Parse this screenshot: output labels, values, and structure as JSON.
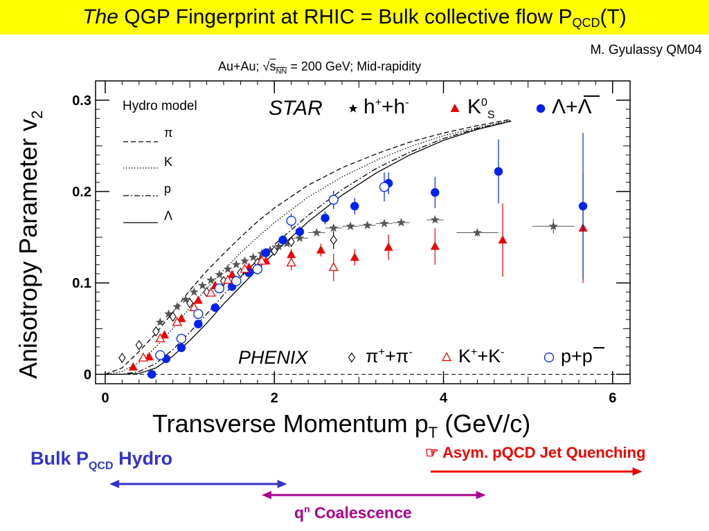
{
  "header": {
    "title_italic": "The",
    "title_main": "QGP Fingerprint at RHIC = Bulk collective flow  P",
    "title_sub": "QCD",
    "title_end": "(T)"
  },
  "author": "M. Gyulassy QM04",
  "subtitle": {
    "prefix": "Au+Au; ",
    "sqrt": "√",
    "s": "s",
    "s_sub": "NN",
    "suffix": " = 200 GeV; Mid-rapidity"
  },
  "axes": {
    "ylabel": "Anisotropy Parameter v",
    "ylabel_sub": "2",
    "xlabel": "Transverse Momentum p",
    "xlabel_sub": "T",
    "xlabel_unit": " (GeV/c)"
  },
  "legend": {
    "hydro_title": "Hydro model",
    "hydro_items": [
      "π",
      "K",
      "p",
      "Λ"
    ],
    "star": "STAR",
    "star_h": "h",
    "star_h_sup1": "+",
    "star_h_mid": "+h",
    "star_h_sup2": "-",
    "star_k": "K",
    "star_k_sup": "0",
    "star_k_sub": "S",
    "star_lambda": "Λ+Λ",
    "phenix": "PHENIX",
    "phenix_pi": "π",
    "phenix_pi_sup1": "+",
    "phenix_pi_mid": "+π",
    "phenix_pi_sup2": "-",
    "phenix_k": "K",
    "phenix_k_sup1": "+",
    "phenix_k_mid": "+K",
    "phenix_k_sup2": "-",
    "phenix_p": "p+p"
  },
  "annotations": {
    "bulk": "Bulk P",
    "bulk_sub": "QCD",
    "bulk_end": " Hydro",
    "jet": "☞ Asym. pQCD Jet Quenching",
    "coal": "q",
    "coal_sup": "n",
    "coal_end": "  Coalescence"
  },
  "colors": {
    "title_bg": "#ffff00",
    "star_kaon": "#ee0000",
    "star_lambda": "#0022ee",
    "bulk_arrow": "#3333cc",
    "jet_arrow": "#ee0000",
    "coal_arrow": "#aa0088",
    "charged": "#555555"
  },
  "chart_data": {
    "type": "scatter",
    "xlim": [
      0,
      6.1
    ],
    "ylim": [
      -0.005,
      0.315
    ],
    "xticks": [
      0,
      2,
      4,
      6
    ],
    "yticks": [
      0,
      0.1,
      0.2,
      0.3
    ],
    "ytick_labels": [
      "0",
      "0.1",
      "0.2",
      "0.3"
    ],
    "series": [
      {
        "name": "h+ + h- (STAR)",
        "marker": "star",
        "x": [
          0.65,
          0.75,
          0.85,
          0.95,
          1.05,
          1.15,
          1.25,
          1.35,
          1.45,
          1.55,
          1.65,
          1.75,
          1.85,
          1.95,
          2.05,
          2.15,
          2.3,
          2.5,
          2.7,
          2.9,
          3.1,
          3.3,
          3.5,
          3.9,
          4.4,
          5.3
        ],
        "y": [
          0.057,
          0.066,
          0.074,
          0.082,
          0.09,
          0.097,
          0.103,
          0.109,
          0.115,
          0.12,
          0.124,
          0.128,
          0.132,
          0.136,
          0.14,
          0.143,
          0.149,
          0.155,
          0.16,
          0.162,
          0.163,
          0.165,
          0.166,
          0.169,
          0.155,
          0.162
        ],
        "yerr": [
          0.002,
          0.002,
          0.002,
          0.002,
          0.002,
          0.002,
          0.002,
          0.002,
          0.002,
          0.002,
          0.002,
          0.002,
          0.002,
          0.002,
          0.002,
          0.002,
          0.002,
          0.002,
          0.003,
          0.003,
          0.003,
          0.003,
          0.003,
          0.003,
          0.004,
          0.008
        ]
      },
      {
        "name": "K0S (STAR)",
        "marker": "triangle-filled",
        "x": [
          0.33,
          0.52,
          0.7,
          0.9,
          1.1,
          1.3,
          1.5,
          1.7,
          1.9,
          2.2,
          2.55,
          2.95,
          3.35,
          3.9,
          4.7,
          5.65
        ],
        "y": [
          0.008,
          0.019,
          0.043,
          0.061,
          0.081,
          0.097,
          0.109,
          0.117,
          0.124,
          0.131,
          0.136,
          0.128,
          0.139,
          0.14,
          0.147,
          0.16
        ],
        "yerr": [
          0.002,
          0.002,
          0.002,
          0.002,
          0.003,
          0.003,
          0.003,
          0.004,
          0.004,
          0.006,
          0.007,
          0.009,
          0.014,
          0.02,
          0.04,
          0.06
        ]
      },
      {
        "name": "Λ+Λbar (STAR)",
        "marker": "circle-filled",
        "x": [
          0.55,
          0.72,
          0.9,
          1.1,
          1.3,
          1.5,
          1.7,
          1.9,
          2.1,
          2.3,
          2.6,
          2.95,
          3.35,
          3.9,
          4.65,
          5.65
        ],
        "y": [
          0.0,
          0.017,
          0.029,
          0.055,
          0.073,
          0.096,
          0.111,
          0.133,
          0.147,
          0.156,
          0.171,
          0.184,
          0.209,
          0.199,
          0.222,
          0.184
        ],
        "yerr": [
          0.002,
          0.002,
          0.002,
          0.003,
          0.003,
          0.004,
          0.004,
          0.005,
          0.005,
          0.006,
          0.007,
          0.009,
          0.012,
          0.017,
          0.035,
          0.08
        ]
      },
      {
        "name": "π+ + π- (PHENIX)",
        "marker": "diamond-open",
        "x": [
          0.2,
          0.4,
          0.6,
          0.8,
          1.0,
          1.2,
          1.4,
          1.6,
          1.8,
          2.0,
          2.2,
          2.7
        ],
        "y": [
          0.018,
          0.032,
          0.047,
          0.063,
          0.078,
          0.09,
          0.102,
          0.111,
          0.122,
          0.135,
          0.145,
          0.147
        ],
        "yerr": [
          0.001,
          0.001,
          0.001,
          0.002,
          0.002,
          0.002,
          0.002,
          0.003,
          0.003,
          0.004,
          0.005,
          0.01
        ]
      },
      {
        "name": "K+ + K- (PHENIX)",
        "marker": "triangle-open",
        "x": [
          0.45,
          0.65,
          0.85,
          1.05,
          1.25,
          1.45,
          1.65,
          1.85,
          2.2,
          2.7
        ],
        "y": [
          0.018,
          0.039,
          0.057,
          0.073,
          0.089,
          0.103,
          0.115,
          0.124,
          0.122,
          0.117
        ],
        "yerr": [
          0.002,
          0.002,
          0.002,
          0.003,
          0.003,
          0.004,
          0.004,
          0.006,
          0.008,
          0.015
        ]
      },
      {
        "name": "p+pbar (PHENIX)",
        "marker": "circle-open",
        "x": [
          0.65,
          0.9,
          1.1,
          1.35,
          1.55,
          1.8,
          2.2,
          2.7,
          3.3
        ],
        "y": [
          0.021,
          0.039,
          0.066,
          0.094,
          0.102,
          0.115,
          0.168,
          0.191,
          0.205
        ],
        "yerr": [
          0.002,
          0.003,
          0.003,
          0.004,
          0.005,
          0.006,
          0.008,
          0.01,
          0.016
        ]
      },
      {
        "name": "Hydro π",
        "style": "dashed",
        "x": [
          0,
          0.2,
          0.4,
          0.6,
          0.8,
          1.0,
          1.2,
          1.4,
          1.6,
          1.8,
          2.0,
          2.4,
          2.8,
          3.2,
          3.6,
          4.0,
          4.4,
          4.8
        ],
        "y": [
          0,
          0.007,
          0.025,
          0.045,
          0.068,
          0.092,
          0.113,
          0.132,
          0.15,
          0.167,
          0.182,
          0.207,
          0.226,
          0.241,
          0.254,
          0.264,
          0.272,
          0.279
        ]
      },
      {
        "name": "Hydro K",
        "style": "dotted",
        "x": [
          0,
          0.2,
          0.4,
          0.6,
          0.8,
          1.0,
          1.2,
          1.4,
          1.6,
          1.8,
          2.0,
          2.4,
          2.8,
          3.2,
          3.6,
          4.0,
          4.4,
          4.8
        ],
        "y": [
          0,
          0.003,
          0.013,
          0.03,
          0.05,
          0.073,
          0.094,
          0.114,
          0.133,
          0.15,
          0.166,
          0.194,
          0.216,
          0.234,
          0.249,
          0.261,
          0.27,
          0.278
        ]
      },
      {
        "name": "Hydro p",
        "style": "dashdot",
        "x": [
          0,
          0.2,
          0.4,
          0.6,
          0.8,
          1.0,
          1.2,
          1.4,
          1.6,
          1.8,
          2.0,
          2.4,
          2.8,
          3.2,
          3.6,
          4.0,
          4.4,
          4.8
        ],
        "y": [
          0,
          0.0,
          0.003,
          0.012,
          0.027,
          0.046,
          0.066,
          0.087,
          0.106,
          0.125,
          0.142,
          0.174,
          0.202,
          0.225,
          0.243,
          0.258,
          0.269,
          0.277
        ]
      },
      {
        "name": "Hydro Λ",
        "style": "solid",
        "x": [
          0,
          0.2,
          0.4,
          0.6,
          0.8,
          1.0,
          1.2,
          1.4,
          1.6,
          1.8,
          2.0,
          2.4,
          2.8,
          3.2,
          3.6,
          4.0,
          4.4,
          4.8
        ],
        "y": [
          0,
          0.0,
          0.001,
          0.007,
          0.02,
          0.037,
          0.056,
          0.077,
          0.096,
          0.115,
          0.133,
          0.167,
          0.196,
          0.22,
          0.24,
          0.256,
          0.268,
          0.277
        ]
      }
    ],
    "arrows": [
      {
        "name": "Bulk PQCD Hydro",
        "x": [
          0.05,
          2.15
        ],
        "style": "double",
        "color_key": "bulk_arrow"
      },
      {
        "name": "Asym. pQCD Jet Quenching",
        "x": [
          3.85,
          6.35
        ],
        "style": "right",
        "color_key": "jet_arrow"
      },
      {
        "name": "qn Coalescence",
        "x": [
          1.85,
          4.5
        ],
        "style": "double",
        "color_key": "coal_arrow"
      }
    ]
  }
}
